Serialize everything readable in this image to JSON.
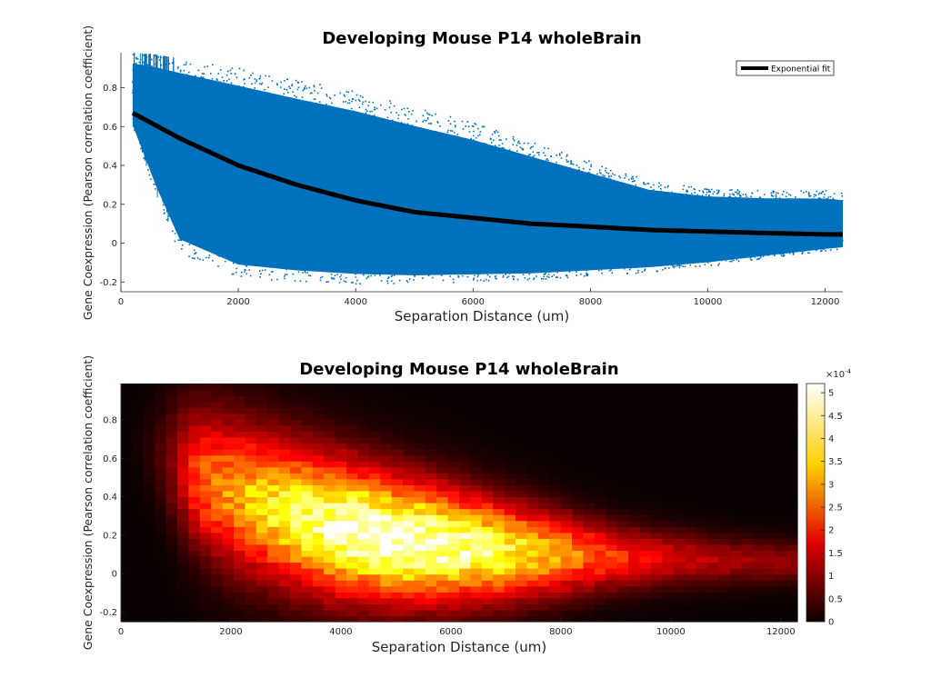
{
  "chart_data": [
    {
      "type": "scatter",
      "title": "Developing Mouse P14 wholeBrain",
      "xlabel": "Separation Distance (um)",
      "ylabel": "Gene Coexpression (Pearson correlation coefficient)",
      "xlim": [
        0,
        12300
      ],
      "ylim": [
        -0.25,
        0.98
      ],
      "xticks": [
        0,
        2000,
        4000,
        6000,
        8000,
        10000,
        12000
      ],
      "yticks": [
        -0.2,
        0,
        0.2,
        0.4,
        0.6,
        0.8
      ],
      "grid": false,
      "legend": {
        "position": "top-right",
        "entries": [
          "Exponential fit"
        ]
      },
      "colors": {
        "points": "#0072BD",
        "fit": "#000000"
      },
      "series": [
        {
          "kind": "points",
          "description_envelope": {
            "x": [
              200,
              600,
              1000,
              2000,
              3000,
              4000,
              5000,
              6000,
              7000,
              8000,
              9000,
              10000,
              11000,
              12000,
              12300
            ],
            "upper": [
              0.98,
              0.97,
              0.95,
              0.9,
              0.84,
              0.78,
              0.7,
              0.62,
              0.52,
              0.42,
              0.32,
              0.28,
              0.27,
              0.27,
              0.26
            ],
            "lower": [
              0.6,
              0.25,
              -0.05,
              -0.18,
              -0.2,
              -0.21,
              -0.21,
              -0.2,
              -0.19,
              -0.17,
              -0.15,
              -0.12,
              -0.08,
              -0.04,
              -0.03
            ]
          }
        },
        {
          "name": "Exponential fit",
          "kind": "line",
          "x": [
            200,
            1000,
            2000,
            3000,
            4000,
            5000,
            6000,
            7000,
            8000,
            9000,
            10000,
            11000,
            12000,
            12300
          ],
          "y": [
            0.67,
            0.54,
            0.4,
            0.3,
            0.22,
            0.16,
            0.13,
            0.1,
            0.085,
            0.068,
            0.06,
            0.052,
            0.045,
            0.045
          ]
        }
      ]
    },
    {
      "type": "heatmap",
      "title": "Developing Mouse P14 wholeBrain",
      "xlabel": "Separation Distance (um)",
      "ylabel": "Gene Coexpression (Pearson correlation coefficient)",
      "xlim": [
        0,
        12300
      ],
      "ylim": [
        -0.25,
        0.99
      ],
      "xticks": [
        0,
        2000,
        4000,
        6000,
        8000,
        10000,
        12000
      ],
      "yticks": [
        -0.2,
        0,
        0.2,
        0.4,
        0.6,
        0.8
      ],
      "colormap": "hot",
      "colorbar": {
        "min": 0,
        "max": 0.00052,
        "ticks": [
          0,
          0.5,
          1,
          1.5,
          2,
          2.5,
          3,
          3.5,
          4,
          4.5,
          5
        ],
        "exponent": "×10",
        "exponent_power": "-4"
      },
      "density_peak": {
        "x": 5000,
        "y": 0.07,
        "value": 0.00052
      }
    }
  ]
}
